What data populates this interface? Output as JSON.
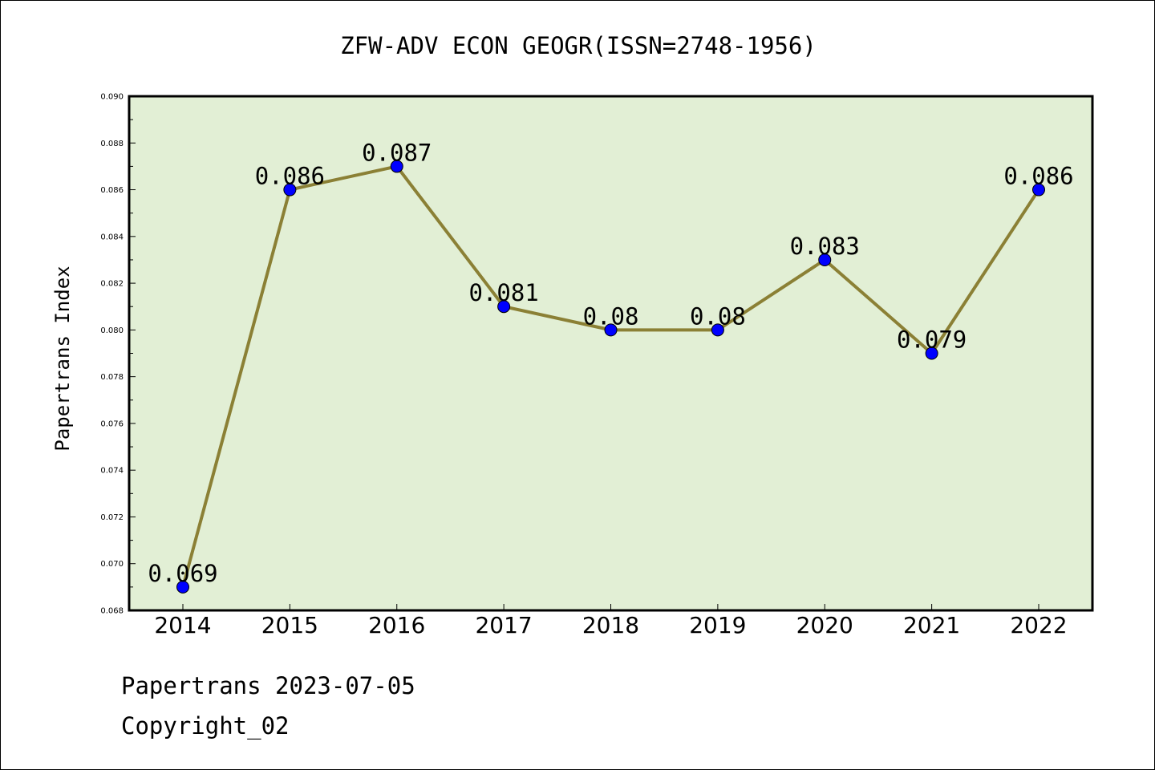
{
  "chart_data": {
    "type": "line",
    "title": "ZFW-ADV ECON GEOGR(ISSN=2748-1956)",
    "xlabel": "",
    "ylabel": "Papertrans Index",
    "categories": [
      "2014",
      "2015",
      "2016",
      "2017",
      "2018",
      "2019",
      "2020",
      "2021",
      "2022"
    ],
    "series": [
      {
        "values": [
          0.069,
          0.086,
          0.087,
          0.081,
          0.08,
          0.08,
          0.083,
          0.079,
          0.086
        ],
        "labels": [
          "0.069",
          "0.086",
          "0.087",
          "0.081",
          "0.08",
          "0.08",
          "0.083",
          "0.079",
          "0.086"
        ]
      }
    ],
    "ylim": [
      0.068,
      0.09
    ],
    "yticks": [
      "0.068",
      "0.070",
      "0.072",
      "0.074",
      "0.076",
      "0.078",
      "0.080",
      "0.082",
      "0.084",
      "0.086",
      "0.088",
      "0.090"
    ],
    "grid": false,
    "legend": "none",
    "colors": {
      "plot_background": "#e2efd5",
      "line": "#8b8035",
      "marker": "#0000ff"
    }
  },
  "footer": {
    "line1": "Papertrans 2023-07-05",
    "line2": "Copyright_02"
  }
}
